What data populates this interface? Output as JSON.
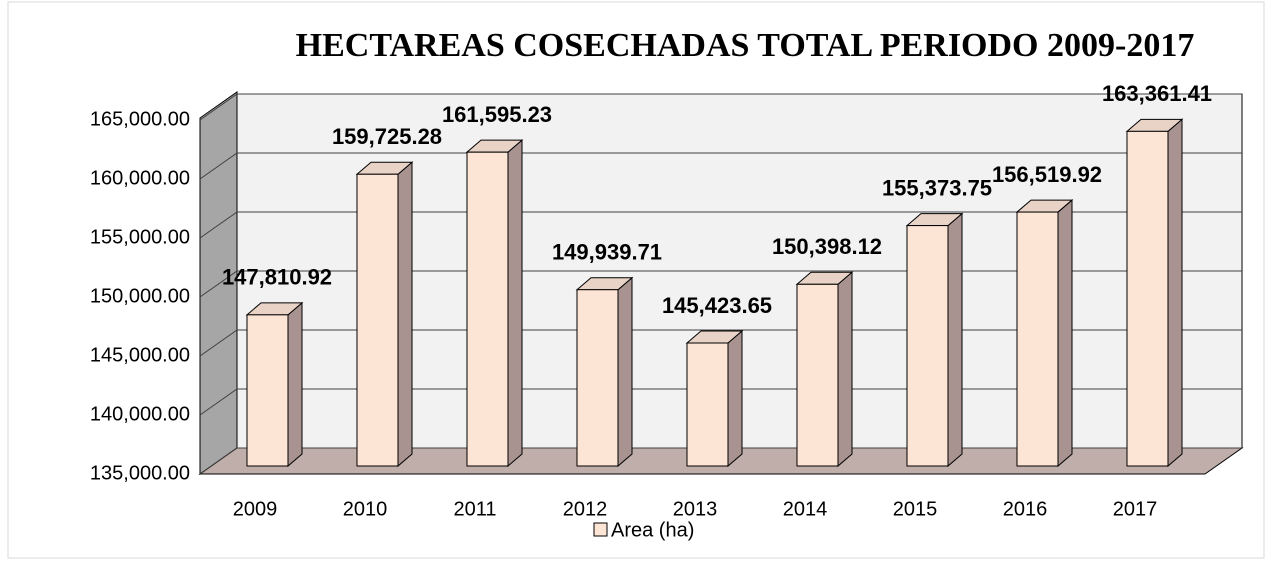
{
  "chart_data": {
    "type": "bar3d",
    "title": "HECTAREAS COSECHADAS  TOTAL PERIODO 2009-2017",
    "categories": [
      "2009",
      "2010",
      "2011",
      "2012",
      "2013",
      "2014",
      "2015",
      "2016",
      "2017"
    ],
    "series": [
      {
        "name": "Area (ha)",
        "color": "#fde5d6",
        "values": [
          147810.92,
          159725.28,
          161595.23,
          149939.71,
          145423.65,
          150398.12,
          155373.75,
          156519.92,
          163361.41
        ],
        "value_labels": [
          "147,810.92",
          "159,725.28",
          "161,595.23",
          "149,939.71",
          "145,423.65",
          "150,398.12",
          "155,373.75",
          "156,519.92",
          "163,361.41"
        ]
      }
    ],
    "ylim": [
      135000,
      165000
    ],
    "yticks": [
      {
        "value": 135000,
        "label": "135,000.00"
      },
      {
        "value": 140000,
        "label": "140,000.00"
      },
      {
        "value": 145000,
        "label": "145,000.00"
      },
      {
        "value": 150000,
        "label": "150,000.00"
      },
      {
        "value": 155000,
        "label": "155,000.00"
      },
      {
        "value": 160000,
        "label": "160,000.00"
      },
      {
        "value": 165000,
        "label": "165,000.00"
      }
    ],
    "grid": true,
    "legend": "bottom"
  }
}
